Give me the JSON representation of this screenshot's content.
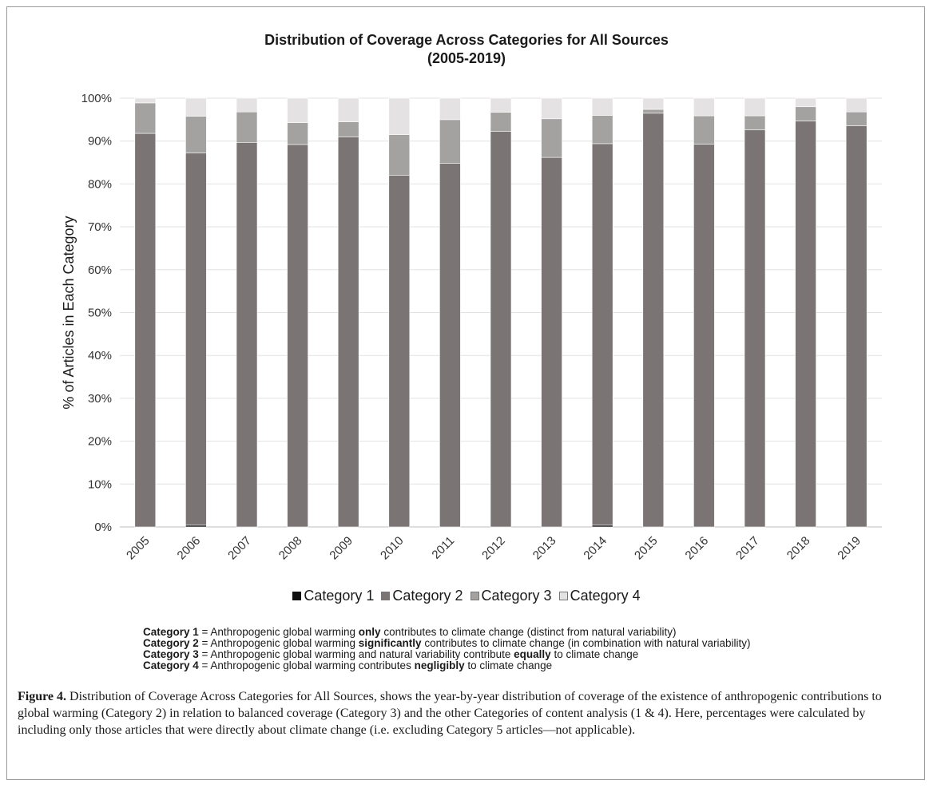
{
  "chart_data": {
    "type": "bar",
    "stacked": true,
    "title": "Distribution of Coverage Across Categories for All Sources",
    "subtitle": "(2005-2019)",
    "xlabel": "",
    "ylabel": "% of  Articles in Each Category",
    "ylim": [
      0,
      100
    ],
    "yticks": [
      "0%",
      "10%",
      "20%",
      "30%",
      "40%",
      "50%",
      "60%",
      "70%",
      "80%",
      "90%",
      "100%"
    ],
    "categories": [
      "2005",
      "2006",
      "2007",
      "2008",
      "2009",
      "2010",
      "2011",
      "2012",
      "2013",
      "2014",
      "2015",
      "2016",
      "2017",
      "2018",
      "2019"
    ],
    "series": [
      {
        "name": "Category 1",
        "color": "#111111",
        "values": [
          0,
          0.4,
          0,
          0,
          0,
          0,
          0,
          0,
          0,
          0.4,
          0,
          0,
          0,
          0,
          0
        ]
      },
      {
        "name": "Category 2",
        "color": "#7a7474",
        "values": [
          91.8,
          86.8,
          89.7,
          89.2,
          91.0,
          82.0,
          84.8,
          92.3,
          86.2,
          89.0,
          96.5,
          89.3,
          92.6,
          94.7,
          93.6
        ]
      },
      {
        "name": "Category 3",
        "color": "#a4a1a1",
        "values": [
          7.1,
          8.6,
          7.1,
          5.1,
          3.5,
          9.5,
          10.2,
          4.4,
          9.0,
          6.6,
          0.9,
          6.6,
          3.3,
          3.3,
          3.2
        ]
      },
      {
        "name": "Category 4",
        "color": "#e4e2e2",
        "values": [
          1.1,
          4.2,
          3.2,
          5.7,
          5.5,
          8.5,
          5.0,
          3.3,
          4.8,
          4.0,
          2.6,
          4.1,
          4.1,
          2.0,
          3.2
        ]
      }
    ],
    "grid": true,
    "legend_position": "bottom"
  },
  "definitions": [
    {
      "term": "Category 1",
      "pre": " = Anthropogenic global warming ",
      "bold": "only",
      "post": " contributes to climate change (distinct from natural variability)"
    },
    {
      "term": "Category 2",
      "pre": " = Anthropogenic global warming ",
      "bold": "significantly",
      "post": " contributes to climate change (in combination with natural variability)"
    },
    {
      "term": "Category 3",
      "pre": " = Anthropogenic global warming and natural variability contribute ",
      "bold": "equally",
      "post": " to climate change"
    },
    {
      "term": "Category 4",
      "pre": " = Anthropogenic global warming contributes ",
      "bold": "negligibly",
      "post": " to climate change"
    }
  ],
  "caption": {
    "label": "Figure 4.",
    "text": " Distribution of Coverage Across Categories for All Sources, shows the year-by-year distribution of coverage of the existence of anthropogenic contributions to global warming (Category 2) in relation to balanced coverage (Category 3) and the other Categories of content analysis (1 & 4). Here, percentages were calculated by including only those articles that were directly about climate change (i.e. excluding Category 5 articles—not applicable)."
  }
}
